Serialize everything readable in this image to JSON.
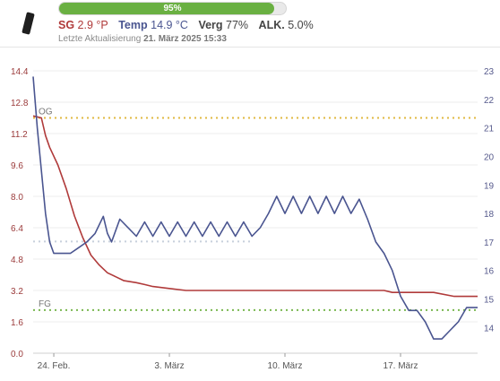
{
  "header": {
    "battery": {
      "label": "95%",
      "fraction": 0.95,
      "color": "#6ab042"
    },
    "sg": {
      "label": "SG",
      "value": "2.9 °P",
      "color": "#b03a3a"
    },
    "temp": {
      "label": "Temp",
      "value": "14.9 °C",
      "color": "#4a5590"
    },
    "verg": {
      "label": "Verg",
      "value": "77%",
      "color": "#444444"
    },
    "alk": {
      "label": "ALK.",
      "value": "5.0%",
      "color": "#444444"
    },
    "updated_prefix": "Letzte Aktualisierung",
    "updated_value": "21. März 2025 15:33",
    "icon": "hydrometer-icon"
  },
  "chart_data": {
    "type": "line",
    "x_ticks": [
      "24. Feb.",
      "3. März",
      "10. März",
      "17. März"
    ],
    "x_range": [
      "2025-02-22T18:00",
      "2025-03-21T16:00"
    ],
    "y_left": {
      "ticks": [
        0.0,
        1.6,
        3.2,
        4.8,
        6.4,
        8.0,
        9.6,
        11.2,
        12.8,
        14.4
      ],
      "range": [
        0,
        14.4
      ],
      "color": "#b03a3a"
    },
    "y_right": {
      "ticks": [
        14,
        15,
        16,
        17,
        18,
        19,
        20,
        21,
        22,
        23
      ],
      "range": [
        13.1,
        23.0
      ],
      "color": "#4a5590"
    },
    "grid": true,
    "reference_lines": [
      {
        "label": "OG",
        "axis": "left",
        "value": 12.0,
        "color": "#e0b840"
      },
      {
        "label": "FG",
        "axis": "left",
        "value": 2.2,
        "color": "#7ab850"
      },
      {
        "label": "",
        "axis": "left",
        "value": 5.7,
        "color": "#c8d0dc",
        "x_end": "2025-03-08"
      }
    ],
    "series": [
      {
        "axis": "left",
        "color": "#b03a3a",
        "points": [
          [
            "2025-02-22T18:00",
            12.1
          ],
          [
            "2025-02-23T06:00",
            12.0
          ],
          [
            "2025-02-23T12:00",
            11.1
          ],
          [
            "2025-02-23T18:00",
            10.5
          ],
          [
            "2025-02-24T06:00",
            9.6
          ],
          [
            "2025-02-24T18:00",
            8.4
          ],
          [
            "2025-02-25T06:00",
            7.0
          ],
          [
            "2025-02-25T18:00",
            5.9
          ],
          [
            "2025-02-26T06:00",
            5.0
          ],
          [
            "2025-02-26T18:00",
            4.5
          ],
          [
            "2025-02-27T06:00",
            4.1
          ],
          [
            "2025-02-27T18:00",
            3.9
          ],
          [
            "2025-02-28T06:00",
            3.7
          ],
          [
            "2025-03-01T00:00",
            3.6
          ],
          [
            "2025-03-01T12:00",
            3.5
          ],
          [
            "2025-03-02T00:00",
            3.4
          ],
          [
            "2025-03-03T00:00",
            3.3
          ],
          [
            "2025-03-04T00:00",
            3.2
          ],
          [
            "2025-03-08T00:00",
            3.2
          ],
          [
            "2025-03-12T00:00",
            3.2
          ],
          [
            "2025-03-16T00:00",
            3.2
          ],
          [
            "2025-03-16T12:00",
            3.1
          ],
          [
            "2025-03-17T00:00",
            3.1
          ],
          [
            "2025-03-19T00:00",
            3.1
          ],
          [
            "2025-03-20T06:00",
            2.9
          ],
          [
            "2025-03-21T16:00",
            2.9
          ]
        ]
      },
      {
        "axis": "right",
        "color": "#4a5590",
        "points": [
          [
            "2025-02-22T18:00",
            22.8
          ],
          [
            "2025-02-23T00:00",
            21.0
          ],
          [
            "2025-02-23T06:00",
            19.5
          ],
          [
            "2025-02-23T12:00",
            18.0
          ],
          [
            "2025-02-23T18:00",
            17.0
          ],
          [
            "2025-02-24T00:00",
            16.6
          ],
          [
            "2025-02-24T12:00",
            16.6
          ],
          [
            "2025-02-25T00:00",
            16.6
          ],
          [
            "2025-02-25T12:00",
            16.8
          ],
          [
            "2025-02-26T00:00",
            17.0
          ],
          [
            "2025-02-26T12:00",
            17.3
          ],
          [
            "2025-02-27T00:00",
            17.9
          ],
          [
            "2025-02-27T06:00",
            17.3
          ],
          [
            "2025-02-27T12:00",
            17.0
          ],
          [
            "2025-02-28T00:00",
            17.8
          ],
          [
            "2025-03-01T00:00",
            17.2
          ],
          [
            "2025-03-01T12:00",
            17.7
          ],
          [
            "2025-03-02T00:00",
            17.2
          ],
          [
            "2025-03-02T12:00",
            17.7
          ],
          [
            "2025-03-03T00:00",
            17.2
          ],
          [
            "2025-03-03T12:00",
            17.7
          ],
          [
            "2025-03-04T00:00",
            17.2
          ],
          [
            "2025-03-04T12:00",
            17.7
          ],
          [
            "2025-03-05T00:00",
            17.2
          ],
          [
            "2025-03-05T12:00",
            17.7
          ],
          [
            "2025-03-06T00:00",
            17.2
          ],
          [
            "2025-03-06T12:00",
            17.7
          ],
          [
            "2025-03-07T00:00",
            17.2
          ],
          [
            "2025-03-07T12:00",
            17.7
          ],
          [
            "2025-03-08T00:00",
            17.2
          ],
          [
            "2025-03-08T12:00",
            17.5
          ],
          [
            "2025-03-09T00:00",
            18.0
          ],
          [
            "2025-03-09T12:00",
            18.6
          ],
          [
            "2025-03-10T00:00",
            18.0
          ],
          [
            "2025-03-10T12:00",
            18.6
          ],
          [
            "2025-03-11T00:00",
            18.0
          ],
          [
            "2025-03-11T12:00",
            18.6
          ],
          [
            "2025-03-12T00:00",
            18.0
          ],
          [
            "2025-03-12T12:00",
            18.6
          ],
          [
            "2025-03-13T00:00",
            18.0
          ],
          [
            "2025-03-13T12:00",
            18.6
          ],
          [
            "2025-03-14T00:00",
            18.0
          ],
          [
            "2025-03-14T12:00",
            18.5
          ],
          [
            "2025-03-15T00:00",
            17.8
          ],
          [
            "2025-03-15T12:00",
            17.0
          ],
          [
            "2025-03-16T00:00",
            16.6
          ],
          [
            "2025-03-16T12:00",
            16.0
          ],
          [
            "2025-03-17T00:00",
            15.1
          ],
          [
            "2025-03-17T12:00",
            14.6
          ],
          [
            "2025-03-18T00:00",
            14.6
          ],
          [
            "2025-03-18T12:00",
            14.2
          ],
          [
            "2025-03-19T00:00",
            13.6
          ],
          [
            "2025-03-19T12:00",
            13.6
          ],
          [
            "2025-03-20T00:00",
            13.9
          ],
          [
            "2025-03-20T12:00",
            14.2
          ],
          [
            "2025-03-21T00:00",
            14.7
          ],
          [
            "2025-03-21T16:00",
            14.7
          ]
        ]
      }
    ]
  }
}
